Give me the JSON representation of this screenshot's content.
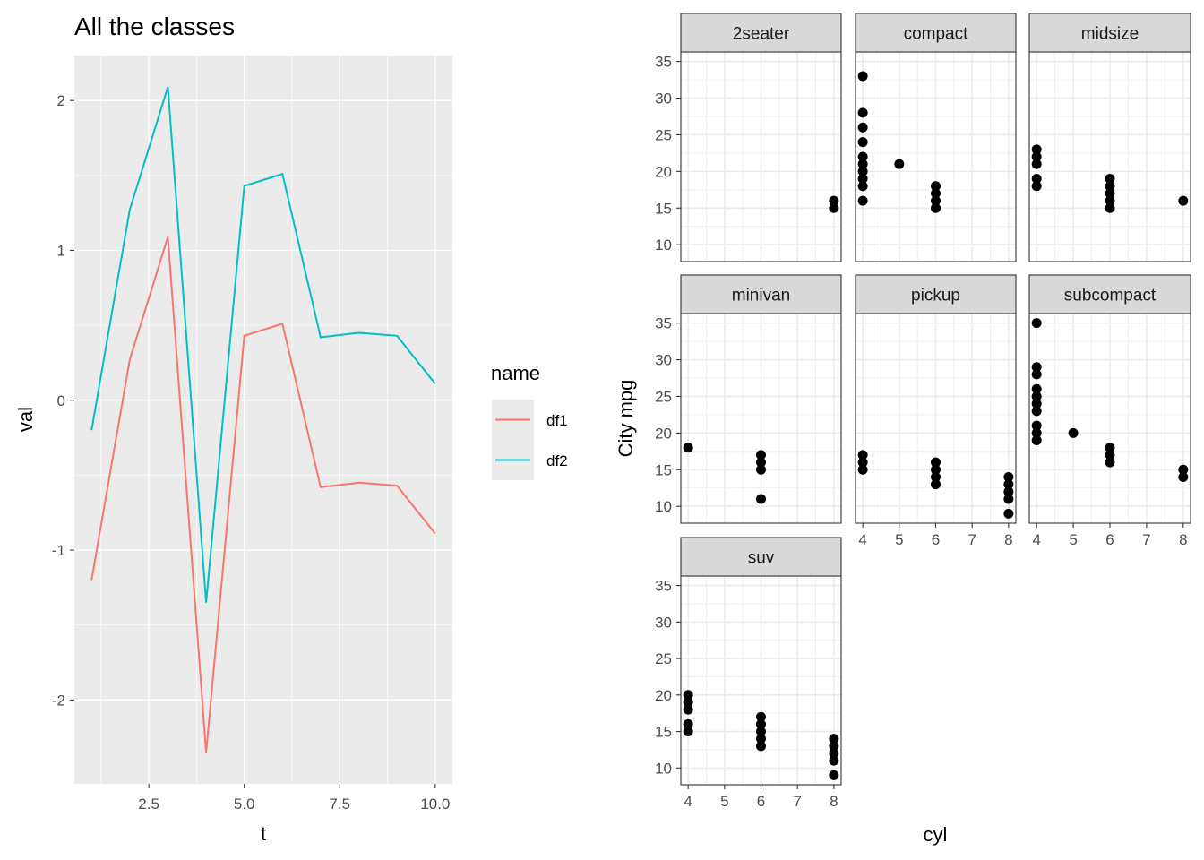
{
  "chart_data": [
    {
      "type": "line",
      "title": "All the classes",
      "xlabel": "t",
      "ylabel": "val",
      "xlim": [
        0.55,
        10.45
      ],
      "ylim": [
        -2.56,
        2.3
      ],
      "xticks": [
        2.5,
        5.0,
        7.5,
        10.0
      ],
      "xtick_labels": [
        "2.5",
        "5.0",
        "7.5",
        "10.0"
      ],
      "yticks": [
        -2,
        -1,
        0,
        1,
        2
      ],
      "ytick_labels": [
        "-2",
        "-1",
        "0",
        "1",
        "2"
      ],
      "grid": true,
      "legend": {
        "title": "name",
        "position": "right"
      },
      "x": [
        1,
        2,
        3,
        4,
        5,
        6,
        7,
        8,
        9,
        10
      ],
      "series": [
        {
          "name": "df1",
          "color": "#F8766D",
          "values": [
            -1.2,
            0.27,
            1.09,
            -2.35,
            0.43,
            0.51,
            -0.58,
            -0.55,
            -0.57,
            -0.89
          ]
        },
        {
          "name": "df2",
          "color": "#00BFC4",
          "values": [
            -0.2,
            1.27,
            2.09,
            -1.35,
            1.43,
            1.51,
            0.42,
            0.45,
            0.43,
            0.11
          ]
        }
      ]
    },
    {
      "type": "scatter",
      "xlabel": "cyl",
      "ylabel": "City mpg",
      "xlim": [
        3.8,
        8.2
      ],
      "ylim": [
        7.7,
        36.3
      ],
      "xticks": [
        4,
        5,
        6,
        7,
        8
      ],
      "xtick_labels": [
        "4",
        "5",
        "6",
        "7",
        "8"
      ],
      "yticks": [
        10,
        15,
        20,
        25,
        30,
        35
      ],
      "ytick_labels": [
        "10",
        "15",
        "20",
        "25",
        "30",
        "35"
      ],
      "grid": true,
      "facets": [
        {
          "name": "2seater",
          "points": [
            [
              8,
              15
            ],
            [
              8,
              16
            ]
          ]
        },
        {
          "name": "compact",
          "points": [
            [
              4,
              16
            ],
            [
              4,
              18
            ],
            [
              4,
              19
            ],
            [
              4,
              20
            ],
            [
              4,
              21
            ],
            [
              4,
              22
            ],
            [
              4,
              24
            ],
            [
              4,
              26
            ],
            [
              4,
              28
            ],
            [
              4,
              33
            ],
            [
              5,
              21
            ],
            [
              6,
              15
            ],
            [
              6,
              16
            ],
            [
              6,
              17
            ],
            [
              6,
              18
            ]
          ]
        },
        {
          "name": "midsize",
          "points": [
            [
              4,
              18
            ],
            [
              4,
              19
            ],
            [
              4,
              21
            ],
            [
              4,
              22
            ],
            [
              4,
              23
            ],
            [
              6,
              15
            ],
            [
              6,
              16
            ],
            [
              6,
              17
            ],
            [
              6,
              18
            ],
            [
              6,
              19
            ],
            [
              8,
              16
            ]
          ]
        },
        {
          "name": "minivan",
          "points": [
            [
              4,
              18
            ],
            [
              6,
              11
            ],
            [
              6,
              15
            ],
            [
              6,
              16
            ],
            [
              6,
              17
            ]
          ]
        },
        {
          "name": "pickup",
          "points": [
            [
              4,
              15
            ],
            [
              4,
              16
            ],
            [
              4,
              17
            ],
            [
              6,
              13
            ],
            [
              6,
              14
            ],
            [
              6,
              15
            ],
            [
              6,
              16
            ],
            [
              8,
              9
            ],
            [
              8,
              11
            ],
            [
              8,
              12
            ],
            [
              8,
              13
            ],
            [
              8,
              14
            ]
          ]
        },
        {
          "name": "subcompact",
          "points": [
            [
              4,
              19
            ],
            [
              4,
              20
            ],
            [
              4,
              21
            ],
            [
              4,
              23
            ],
            [
              4,
              24
            ],
            [
              4,
              25
            ],
            [
              4,
              26
            ],
            [
              4,
              28
            ],
            [
              4,
              29
            ],
            [
              4,
              35
            ],
            [
              5,
              20
            ],
            [
              6,
              16
            ],
            [
              6,
              17
            ],
            [
              6,
              18
            ],
            [
              8,
              14
            ],
            [
              8,
              15
            ]
          ]
        },
        {
          "name": "suv",
          "points": [
            [
              4,
              15
            ],
            [
              4,
              16
            ],
            [
              4,
              18
            ],
            [
              4,
              19
            ],
            [
              4,
              20
            ],
            [
              6,
              13
            ],
            [
              6,
              14
            ],
            [
              6,
              15
            ],
            [
              6,
              16
            ],
            [
              6,
              17
            ],
            [
              8,
              9
            ],
            [
              8,
              11
            ],
            [
              8,
              12
            ],
            [
              8,
              13
            ],
            [
              8,
              14
            ]
          ]
        }
      ]
    }
  ]
}
